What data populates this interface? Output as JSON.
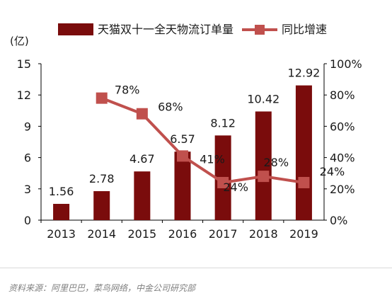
{
  "chart_data": {
    "type": "bar",
    "unit_label": "(亿)",
    "categories": [
      "2013",
      "2014",
      "2015",
      "2016",
      "2017",
      "2018",
      "2019"
    ],
    "series": [
      {
        "name": "天猫双十一全天物流订单量",
        "type": "bar",
        "axis": "left",
        "values": [
          1.56,
          2.78,
          4.67,
          6.57,
          8.12,
          10.42,
          12.92
        ],
        "labels": [
          "1.56",
          "2.78",
          "4.67",
          "6.57",
          "8.12",
          "10.42",
          "12.92"
        ]
      },
      {
        "name": "同比增速",
        "type": "line",
        "axis": "right",
        "values": [
          null,
          78,
          68,
          41,
          24,
          28,
          24
        ],
        "labels": [
          "",
          "78%",
          "68%",
          "41%",
          "24%",
          "28%",
          "24%"
        ]
      }
    ],
    "left_axis": {
      "ylim": [
        0,
        15
      ],
      "ticks": [
        "0",
        "3",
        "6",
        "9",
        "12",
        "15"
      ]
    },
    "right_axis": {
      "ylim": [
        0,
        100
      ],
      "ticks": [
        "0%",
        "20%",
        "40%",
        "60%",
        "80%",
        "100%"
      ]
    },
    "colors": {
      "bar": "#7a0c0c",
      "line": "#c0504d"
    },
    "legend_position": "top"
  },
  "source_text": "资料来源：阿里巴巴，菜鸟网络，中金公司研究部"
}
